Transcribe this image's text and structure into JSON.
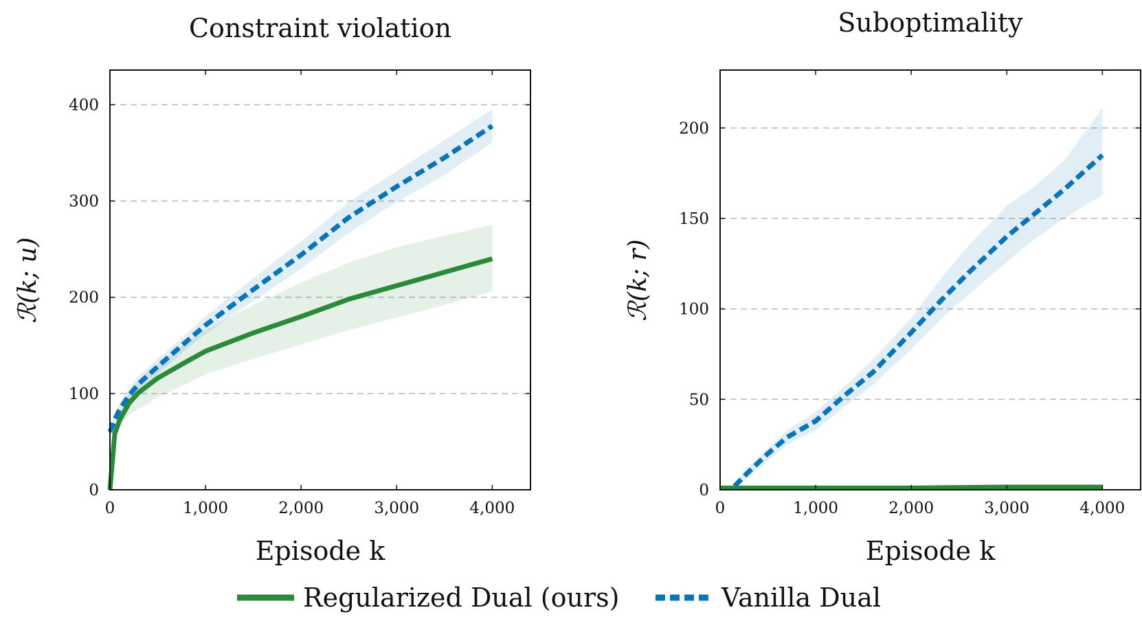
{
  "legend": {
    "items": [
      {
        "label": "Regularized Dual (ours)",
        "color": "#2a8a3a",
        "style": "solid"
      },
      {
        "label": "Vanilla Dual",
        "color": "#0a74b8",
        "style": "dashed"
      }
    ],
    "placement": "bottom-center"
  },
  "chart_data": [
    {
      "type": "line",
      "title": "Constraint violation",
      "xlabel": "Episode k",
      "ylabel": "ℛ(k; u)",
      "xlim": [
        0,
        4400
      ],
      "ylim": [
        0,
        400
      ],
      "xticks": [
        0,
        1000,
        2000,
        3000,
        4000
      ],
      "xtick_labels": [
        "0",
        "1,000",
        "2,000",
        "3,000",
        "4,000"
      ],
      "yticks": [
        0,
        100,
        200,
        300,
        400
      ],
      "ytick_labels": [
        "0",
        "100",
        "200",
        "300",
        "400"
      ],
      "grid": "horizontal-dashed",
      "series": [
        {
          "name": "Regularized Dual (ours)",
          "color": "#2a8a3a",
          "style": "solid",
          "x": [
            0,
            50,
            100,
            200,
            300,
            500,
            800,
            1000,
            1500,
            2000,
            2500,
            3000,
            3500,
            4000
          ],
          "y": [
            0,
            58,
            72,
            90,
            101,
            116,
            133,
            144,
            163,
            180,
            198,
            212,
            226,
            240
          ],
          "band_low": [
            0,
            52,
            65,
            78,
            84,
            96,
            110,
            120,
            136,
            151,
            166,
            179,
            192,
            206
          ],
          "band_high": [
            0,
            64,
            79,
            100,
            114,
            131,
            153,
            166,
            192,
            215,
            236,
            252,
            264,
            275
          ]
        },
        {
          "name": "Vanilla Dual",
          "color": "#0a74b8",
          "style": "dashed",
          "x": [
            0,
            50,
            100,
            200,
            300,
            500,
            800,
            1000,
            1500,
            2000,
            2500,
            3000,
            3500,
            4000
          ],
          "y": [
            60,
            73,
            83,
            98,
            110,
            128,
            154,
            171,
            208,
            244,
            283,
            315,
            345,
            378
          ],
          "band_low": [
            55,
            67,
            76,
            91,
            102,
            120,
            146,
            162,
            196,
            230,
            267,
            299,
            327,
            361
          ],
          "band_high": [
            65,
            79,
            90,
            105,
            118,
            136,
            162,
            180,
            220,
            258,
            299,
            331,
            363,
            395
          ]
        }
      ]
    },
    {
      "type": "line",
      "title": "Suboptimality",
      "xlabel": "Episode k",
      "ylabel": "ℛ(k; r)",
      "xlim": [
        0,
        4400
      ],
      "ylim": [
        0,
        200
      ],
      "xticks": [
        0,
        1000,
        2000,
        3000,
        4000
      ],
      "xtick_labels": [
        "0",
        "1,000",
        "2,000",
        "3,000",
        "4,000"
      ],
      "yticks": [
        0,
        50,
        100,
        150,
        200
      ],
      "ytick_labels": [
        "0",
        "50",
        "100",
        "150",
        "200"
      ],
      "grid": "horizontal-dashed",
      "series": [
        {
          "name": "Regularized Dual (ours)",
          "color": "#2a8a3a",
          "style": "solid",
          "x": [
            0,
            1000,
            2000,
            2500,
            3000,
            3500,
            4000
          ],
          "y": [
            1.0,
            1.0,
            1.0,
            1.3,
            1.5,
            1.5,
            1.5
          ],
          "band_low": [
            0.6,
            0.6,
            0.6,
            0.8,
            1.0,
            1.0,
            1.0
          ],
          "band_high": [
            1.4,
            1.4,
            1.4,
            1.8,
            2.0,
            2.0,
            2.0
          ]
        },
        {
          "name": "Vanilla Dual",
          "color": "#0a74b8",
          "style": "dashed",
          "x": [
            150,
            300,
            500,
            700,
            1000,
            1300,
            1600,
            2000,
            2300,
            2600,
            3000,
            3300,
            3600,
            4000
          ],
          "y": [
            2,
            10,
            20,
            29,
            38,
            52,
            65,
            87,
            104,
            120,
            140,
            153,
            166,
            185
          ],
          "band_low": [
            0,
            7,
            16,
            25,
            33,
            46,
            58,
            78,
            94,
            108,
            126,
            139,
            150,
            163
          ],
          "band_high": [
            4,
            13,
            23,
            33,
            43,
            57,
            72,
            95,
            116,
            135,
            157,
            168,
            182,
            211
          ]
        }
      ]
    }
  ]
}
